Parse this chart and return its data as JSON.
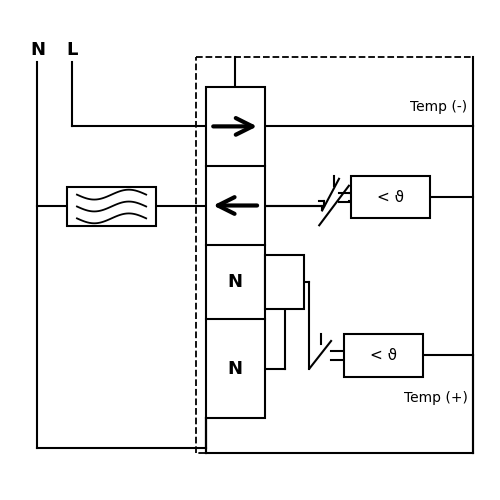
{
  "bg_color": "#ffffff",
  "line_color": "#000000",
  "lw": 1.5,
  "dlw": 1.3,
  "label_N": "N",
  "label_L": "L",
  "label_temp_minus": "Temp (-)",
  "label_temp_plus": "Temp (+)",
  "label_theta": "< ϑ",
  "label_N1": "N",
  "label_N2": "N"
}
